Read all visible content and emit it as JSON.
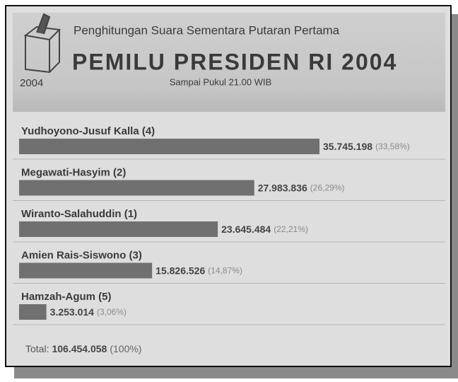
{
  "chart_data": {
    "type": "hbar",
    "badge_year": "2004",
    "supertitle": "Penghitungan Suara Sementara Putaran Pertama",
    "title": "PEMILU PRESIDEN RI 2004",
    "subtitle": "Sampai Pukul 21.00 WIB",
    "categories": [
      "Yudhoyono-Jusuf Kalla (4)",
      "Megawati-Hasyim (2)",
      "Wiranto-Salahuddin (1)",
      "Amien Rais-Siswono (3)",
      "Hamzah-Agum (5)"
    ],
    "values": [
      35745198,
      27983836,
      23645484,
      15826526,
      3253014
    ],
    "value_labels": [
      "35.745.198",
      "27.983.836",
      "23.645.484",
      "15.826.526",
      "3.253.014"
    ],
    "share_labels": [
      "(33,58%)",
      "(26,29%)",
      "(22,21%)",
      "(14,87%)",
      "(3,06%)"
    ],
    "color": "#707070",
    "total": {
      "label": "Total:",
      "value_label": "106.454.058",
      "share_label": "(100%)"
    }
  }
}
